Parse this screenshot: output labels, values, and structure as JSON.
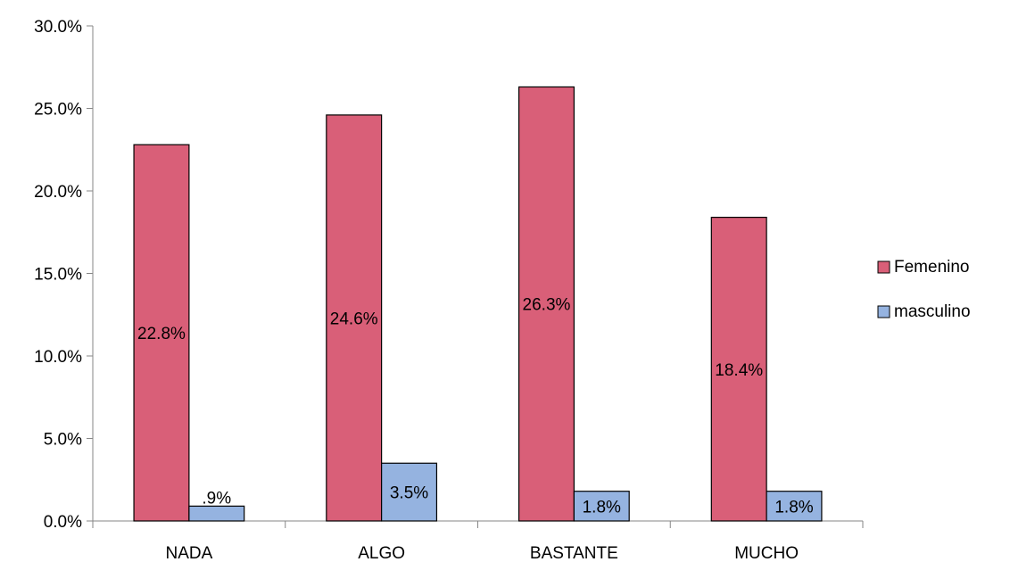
{
  "chart_data": {
    "type": "bar",
    "title": "",
    "xlabel": "",
    "ylabel": "",
    "categories": [
      "NADA",
      "ALGO",
      "BASTANTE",
      "MUCHO"
    ],
    "ylim": [
      0,
      30
    ],
    "yticks": [
      0,
      5,
      10,
      15,
      20,
      25,
      30
    ],
    "ytick_labels": [
      "0.0%",
      "5.0%",
      "10.0%",
      "15.0%",
      "20.0%",
      "25.0%",
      "30.0%"
    ],
    "grid": false,
    "legend_position": "right",
    "series": [
      {
        "name": "Femenino",
        "color": "#d95f78",
        "values": [
          22.8,
          24.6,
          26.3,
          18.4
        ],
        "labels": [
          "22.8%",
          "24.6%",
          "26.3%",
          "18.4%"
        ]
      },
      {
        "name": "masculino",
        "color": "#95b3e0",
        "values": [
          0.9,
          3.5,
          1.8,
          1.8
        ],
        "labels": [
          ".9%",
          "3.5%",
          "1.8%",
          "1.8%"
        ]
      }
    ]
  }
}
